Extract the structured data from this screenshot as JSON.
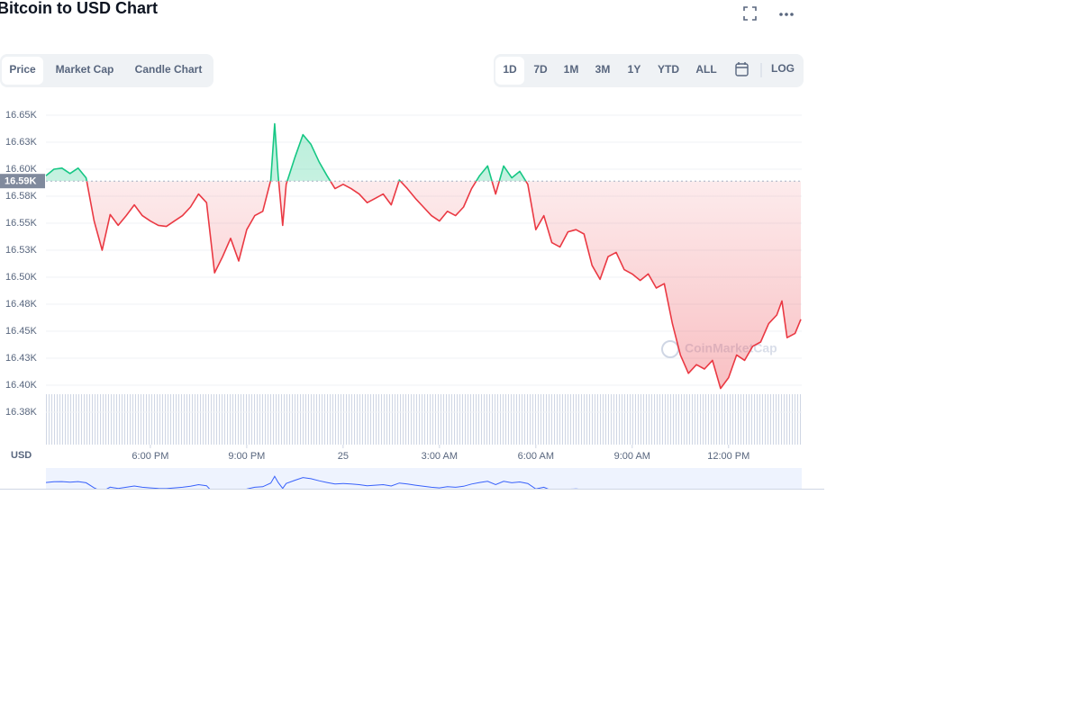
{
  "header": {
    "title": "Bitcoin to USD Chart"
  },
  "tabs": {
    "items": [
      "Price",
      "Market Cap",
      "Candle Chart"
    ],
    "selected": 0
  },
  "ranges": {
    "items": [
      "1D",
      "7D",
      "1M",
      "3M",
      "1Y",
      "YTD",
      "ALL"
    ],
    "selected": 0,
    "log": "LOG"
  },
  "chart_data": {
    "type": "line",
    "x": [
      -9.25,
      -9,
      -8.75,
      -8.5,
      -8.25,
      -8,
      -7.75,
      -7.5,
      -7.25,
      -7,
      -6.75,
      -6.5,
      -6.25,
      -6,
      -5.75,
      -5.5,
      -5.25,
      -5,
      -4.75,
      -4.5,
      -4.25,
      -4,
      -3.75,
      -3.5,
      -3.25,
      -3,
      -2.75,
      -2.5,
      -2.25,
      -2.13,
      -2.02,
      -1.88,
      -1.77,
      -1.5,
      -1.25,
      -1,
      -0.75,
      -0.5,
      -0.25,
      0,
      0.25,
      0.5,
      0.75,
      1,
      1.25,
      1.5,
      1.75,
      2,
      2.25,
      2.5,
      2.75,
      3,
      3.25,
      3.5,
      3.75,
      4,
      4.25,
      4.5,
      4.75,
      5,
      5.25,
      5.5,
      5.75,
      6,
      6.25,
      6.5,
      6.75,
      7,
      7.25,
      7.5,
      7.75,
      8,
      8.25,
      8.5,
      8.75,
      9,
      9.25,
      9.5,
      9.75,
      10,
      10.25,
      10.5,
      10.75,
      11,
      11.25,
      11.5,
      11.75,
      12,
      12.25,
      12.5,
      12.75,
      13,
      13.25,
      13.5,
      13.66,
      13.82,
      14.07,
      14.25
    ],
    "values": [
      16594,
      16600,
      16601,
      16596,
      16601,
      16592,
      16552,
      16525,
      16558,
      16548,
      16557,
      16567,
      16557,
      16552,
      16548,
      16547,
      16552,
      16557,
      16565,
      16577,
      16569,
      16504,
      16519,
      16536,
      16515,
      16544,
      16557,
      16561,
      16590,
      16642,
      16594,
      16548,
      16586,
      16611,
      16632,
      16623,
      16607,
      16594,
      16582,
      16586,
      16582,
      16577,
      16569,
      16573,
      16577,
      16567,
      16590,
      16582,
      16573,
      16565,
      16557,
      16552,
      16561,
      16557,
      16565,
      16582,
      16594,
      16603,
      16577,
      16603,
      16592,
      16598,
      16586,
      16544,
      16557,
      16532,
      16528,
      16542,
      16544,
      16540,
      16511,
      16498,
      16519,
      16523,
      16507,
      16503,
      16497,
      16503,
      16490,
      16494,
      16457,
      16428,
      16411,
      16419,
      16415,
      16423,
      16397,
      16407,
      16428,
      16423,
      16436,
      16440,
      16457,
      16465,
      16478,
      16444,
      16448,
      16461
    ],
    "xlim": [
      -9.25,
      14.25
    ],
    "ylim": [
      16345,
      16650
    ],
    "xticks": [
      {
        "value": -6,
        "label": "6:00 PM"
      },
      {
        "value": -3,
        "label": "9:00 PM"
      },
      {
        "value": 0,
        "label": "25"
      },
      {
        "value": 3,
        "label": "3:00 AM"
      },
      {
        "value": 6,
        "label": "6:00 AM"
      },
      {
        "value": 9,
        "label": "9:00 AM"
      },
      {
        "value": 12,
        "label": "12:00 PM"
      }
    ],
    "yticks": [
      {
        "value": 16650,
        "label": "16.65K"
      },
      {
        "value": 16625,
        "label": "16.63K"
      },
      {
        "value": 16600,
        "label": "16.60K"
      },
      {
        "value": 16575,
        "label": "16.58K"
      },
      {
        "value": 16550,
        "label": "16.55K"
      },
      {
        "value": 16525,
        "label": "16.53K"
      },
      {
        "value": 16500,
        "label": "16.50K"
      },
      {
        "value": 16475,
        "label": "16.48K"
      },
      {
        "value": 16450,
        "label": "16.45K"
      },
      {
        "value": 16425,
        "label": "16.43K"
      },
      {
        "value": 16400,
        "label": "16.40K"
      },
      {
        "value": 16375,
        "label": "16.38K"
      }
    ],
    "reference": {
      "value": 16589,
      "label": "16.59K"
    },
    "currency": "USD",
    "watermark": "CoinMarketCap",
    "up_color": "#16c784",
    "down_color": "#ea3943",
    "navigator_color": "#3861fb",
    "grid": true
  }
}
